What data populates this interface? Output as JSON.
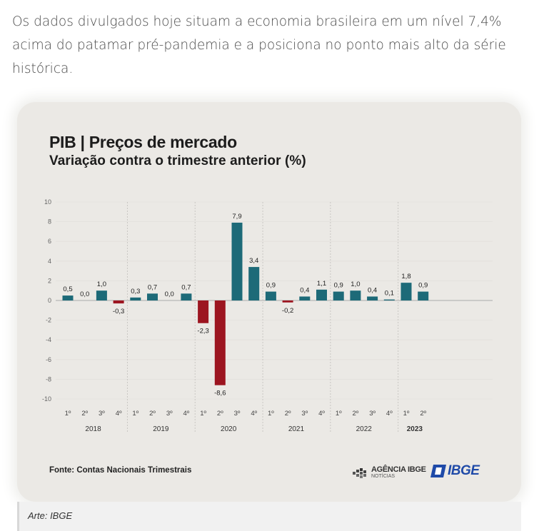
{
  "article": {
    "paragraph": "Os dados divulgados hoje situam a economia brasileira em um nível 7,4% acima do patamar pré-pandemia e a posiciona no ponto mais alto da série histórica."
  },
  "chart_data": {
    "type": "bar",
    "title": "PIB | Preços de mercado",
    "subtitle": "Variação contra o trimestre anterior (%)",
    "ylim": [
      -10,
      10
    ],
    "yticks": [
      "10",
      "8",
      "6",
      "4",
      "2",
      "0",
      "-2",
      "-4",
      "-6",
      "-8",
      "-10"
    ],
    "ytick_values": [
      10,
      8,
      6,
      4,
      2,
      0,
      -2,
      -4,
      -6,
      -8,
      -10
    ],
    "grid": "vertical separators between years",
    "years": [
      {
        "label": "2018",
        "quarters": [
          "1º",
          "2º",
          "3º",
          "4º"
        ],
        "values": [
          0.5,
          0.0,
          1.0,
          -0.3
        ],
        "labels": [
          "0,5",
          "0,0",
          "1,0",
          "-0,3"
        ]
      },
      {
        "label": "2019",
        "quarters": [
          "1º",
          "2º",
          "3º",
          "4º"
        ],
        "values": [
          0.3,
          0.7,
          0.0,
          0.7
        ],
        "labels": [
          "0,3",
          "0,7",
          "0,0",
          "0,7"
        ]
      },
      {
        "label": "2020",
        "quarters": [
          "1º",
          "2º",
          "3º",
          "4º"
        ],
        "values": [
          -2.3,
          -8.6,
          7.9,
          3.4
        ],
        "labels": [
          "-2,3",
          "-8,6",
          "7,9",
          "3,4"
        ]
      },
      {
        "label": "2021",
        "quarters": [
          "1º",
          "2º",
          "3º",
          "4º"
        ],
        "values": [
          0.9,
          -0.2,
          0.4,
          1.1
        ],
        "labels": [
          "0,9",
          "-0,2",
          "0,4",
          "1,1"
        ]
      },
      {
        "label": "2022",
        "quarters": [
          "1º",
          "2º",
          "3º",
          "4º"
        ],
        "values": [
          0.9,
          1.0,
          0.4,
          0.1
        ],
        "labels": [
          "0,9",
          "1,0",
          "0,4",
          "0,1"
        ]
      },
      {
        "label": "2023",
        "quarters": [
          "1º",
          "2º"
        ],
        "values": [
          1.8,
          0.9
        ],
        "labels": [
          "1,8",
          "0,9"
        ]
      }
    ],
    "colors": {
      "positive": "#1d6a78",
      "negative": "#9c1520",
      "axis": "#9a9a9a",
      "grid": "#ffffff"
    }
  },
  "footer": {
    "source": "Fonte: Contas Nacionais Trimestrais",
    "logo_agencia": "AGÊNCIA IBGE",
    "logo_agencia_sub": "NOTÍCIAS",
    "logo_ibge": "IBGE"
  },
  "credit": "Arte: IBGE"
}
